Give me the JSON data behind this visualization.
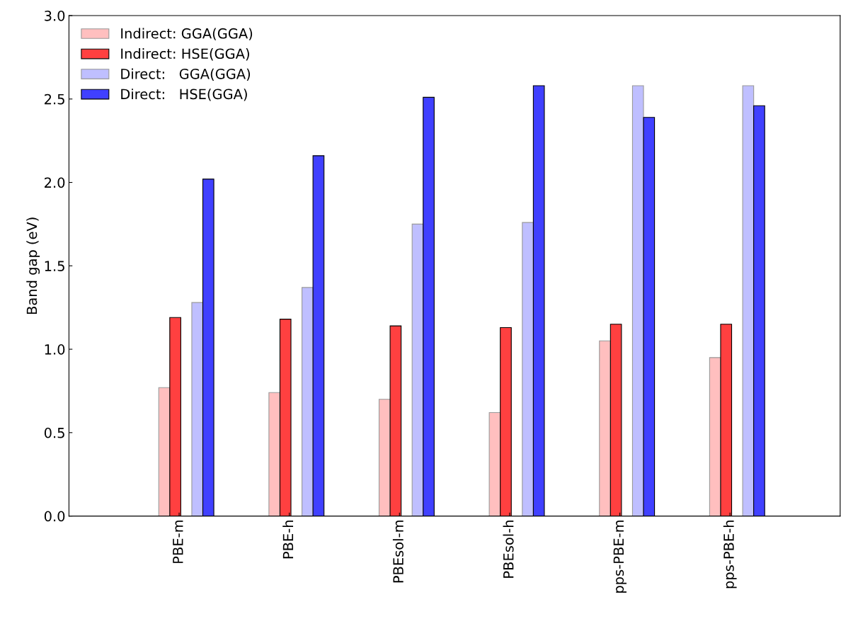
{
  "chart_data": {
    "type": "bar",
    "ylabel": "Band gap (eV)",
    "categories": [
      "PBE-m",
      "PBE-h",
      "PBEsol-m",
      "PBEsol-h",
      "pps-PBE-m",
      "pps-PBE-h"
    ],
    "series": [
      {
        "name": "Indirect: GGA(GGA)",
        "color": "#ffbfbf",
        "values": [
          0.77,
          0.74,
          0.7,
          0.62,
          1.05,
          0.95
        ]
      },
      {
        "name": "Indirect: HSE(GGA)",
        "color": "#ff4040",
        "values": [
          1.19,
          1.18,
          1.14,
          1.13,
          1.15,
          1.15
        ]
      },
      {
        "name": "Direct:   GGA(GGA)",
        "color": "#bfbfff",
        "values": [
          1.28,
          1.37,
          1.75,
          1.76,
          2.58,
          2.58
        ]
      },
      {
        "name": "Direct:   HSE(GGA)",
        "color": "#4040ff",
        "values": [
          2.02,
          2.16,
          2.51,
          2.58,
          2.39,
          2.46
        ]
      }
    ],
    "ylim": [
      0,
      3.0
    ],
    "yticks": [
      {
        "value": 0,
        "label": "0.0"
      },
      0.5,
      {
        "value": 1,
        "label": "1.0"
      },
      1.5,
      {
        "value": 2,
        "label": "2.0"
      },
      2.5,
      {
        "value": 3,
        "label": "3.0"
      }
    ],
    "legend": "top left",
    "grid": false
  }
}
